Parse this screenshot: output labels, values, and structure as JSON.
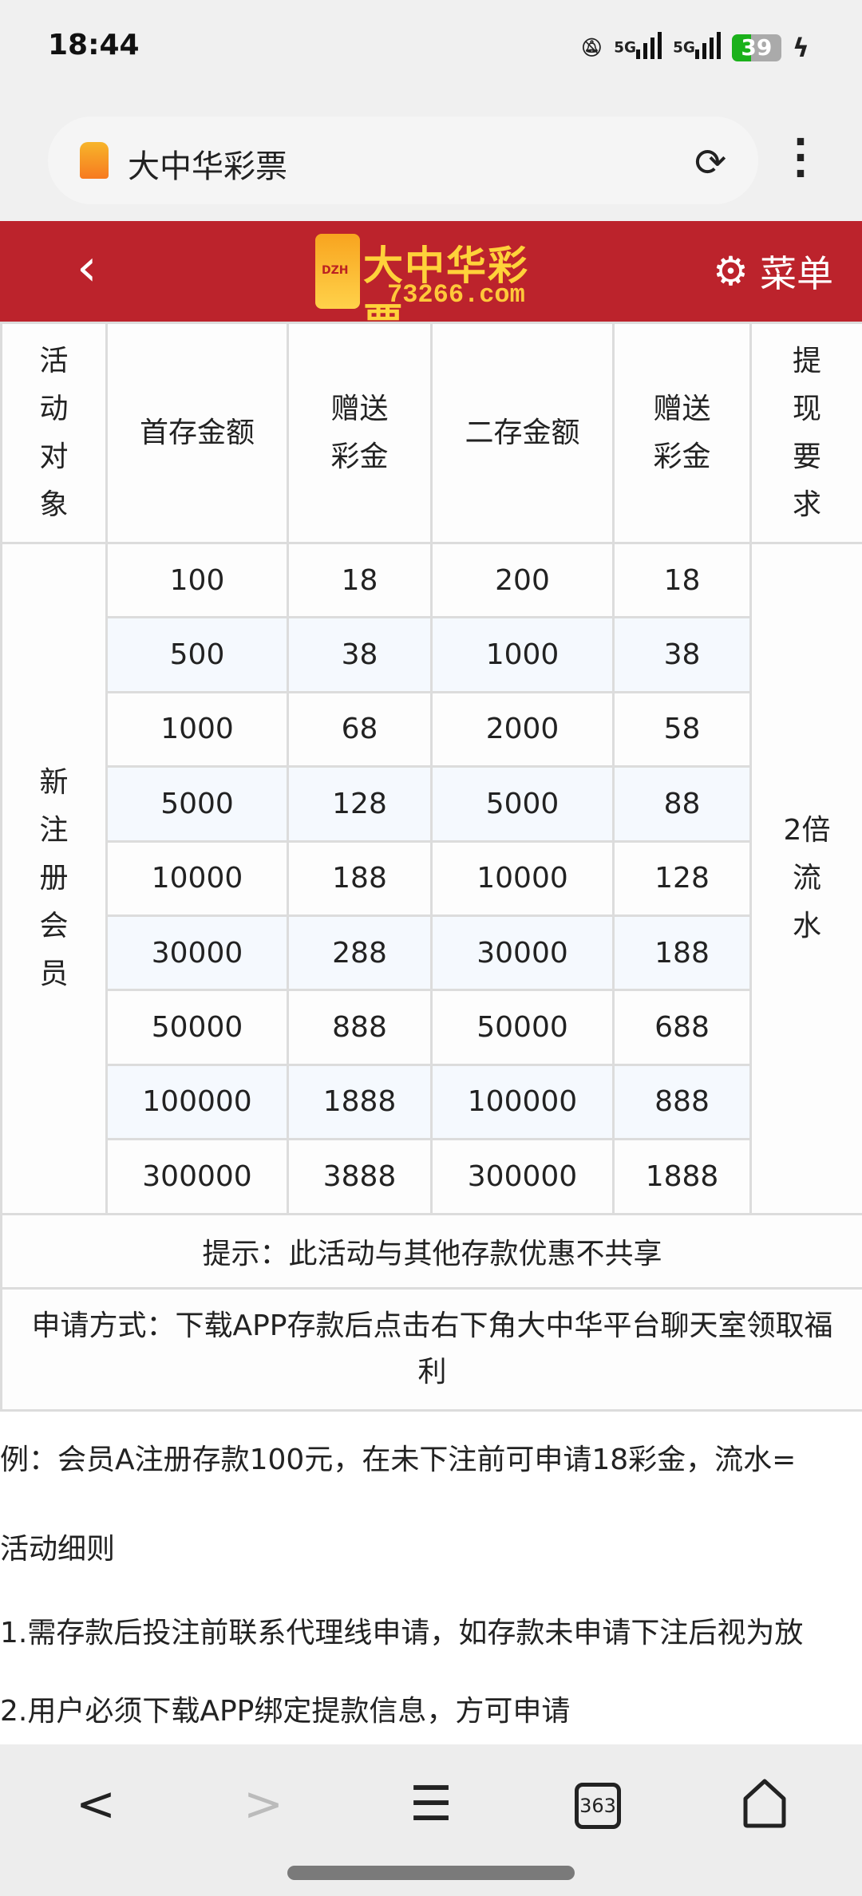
{
  "status_bar": {
    "time": "18:44",
    "network1": "5G",
    "network2": "5G",
    "battery": "39",
    "icons": [
      "bell-muted-icon",
      "signal-icon",
      "signal-icon",
      "battery-icon",
      "charging-icon"
    ]
  },
  "browser": {
    "page_title": "大中华彩票",
    "reload_icon": "reload-icon",
    "menu_icon": "kebab-icon"
  },
  "header": {
    "logo_text": "大中华彩票",
    "logo_domain": "73266.com",
    "logo_mark": "DZH",
    "menu_label": "菜单",
    "colors": {
      "brand": "#bc232c",
      "logo": "#ffd23a"
    }
  },
  "table": {
    "headers": [
      "活动对象",
      "首存金额",
      "赠送彩金",
      "二存金额",
      "赠送彩金",
      "提现要求"
    ],
    "target": "新注册会员",
    "requirement": "2倍流水",
    "rows": [
      [
        "100",
        "18",
        "200",
        "18"
      ],
      [
        "500",
        "38",
        "1000",
        "38"
      ],
      [
        "1000",
        "68",
        "2000",
        "58"
      ],
      [
        "5000",
        "128",
        "5000",
        "88"
      ],
      [
        "10000",
        "188",
        "10000",
        "128"
      ],
      [
        "30000",
        "288",
        "30000",
        "188"
      ],
      [
        "50000",
        "888",
        "50000",
        "688"
      ],
      [
        "100000",
        "1888",
        "100000",
        "888"
      ],
      [
        "300000",
        "3888",
        "300000",
        "1888"
      ]
    ],
    "tip": "提示：此活动与其他存款优惠不共享",
    "apply": "申请方式：下载APP存款后点击右下角大中华平台聊天室领取福利"
  },
  "body": {
    "example": "例：会员A注册存款100元，在未下注前可申请18彩金，流水=",
    "rules_title": "活动细则",
    "rule1": "1.需存款后投注前联系代理线申请，如存款未申请下注后视为放",
    "rule2": "2.用户必须下载APP绑定提款信息，方可申请"
  },
  "bottom_nav": {
    "tab_count": "363"
  }
}
